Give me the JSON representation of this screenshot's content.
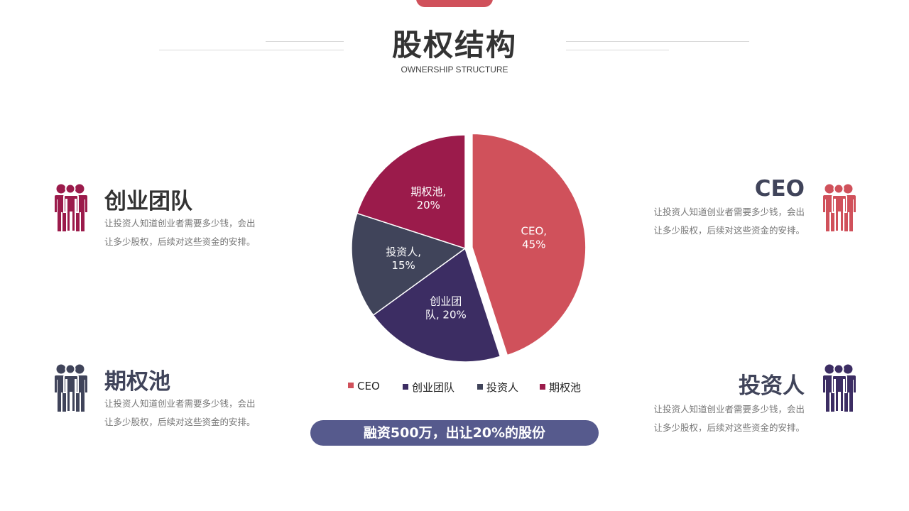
{
  "header": {
    "title": "股权结构",
    "subtitle": "OWNERSHIP STRUCTURE"
  },
  "colors": {
    "ceo": "#d0515b",
    "team": "#3c2d63",
    "investor": "#40445a",
    "pool": "#9b1b4b",
    "pill": "#565a8d"
  },
  "cards": [
    {
      "key": "team",
      "title": "创业团队",
      "desc": "让投资人知道创业者需要多少钱，会出让多少股权，后续对这些资金的安排。",
      "title_color": "#333333",
      "icon_color": "#9b1b4b"
    },
    {
      "key": "pool",
      "title": "期权池",
      "desc": "让投资人知道创业者需要多少钱，会出让多少股权，后续对这些资金的安排。",
      "title_color": "#40445a",
      "icon_color": "#40445a"
    },
    {
      "key": "ceo",
      "title": "CEO",
      "desc": "让投资人知道创业者需要多少钱，会出让多少股权，后续对这些资金的安排。",
      "title_color": "#40445a",
      "icon_color": "#d0515b"
    },
    {
      "key": "investor",
      "title": "投资人",
      "desc": "让投资人知道创业者需要多少钱，会出让多少股权，后续对这些资金的安排。",
      "title_color": "#40445a",
      "icon_color": "#3c2d63"
    }
  ],
  "chart_data": {
    "type": "pie",
    "title": "",
    "slices": [
      {
        "label": "CEO",
        "value": 45,
        "color": "#d0515b",
        "data_label": [
          "CEO,",
          "45%"
        ],
        "exploded": true
      },
      {
        "label": "创业团队",
        "value": 20,
        "color": "#3c2d63",
        "data_label": [
          "创业团",
          "队, 20%"
        ],
        "exploded": false
      },
      {
        "label": "投资人",
        "value": 15,
        "color": "#40445a",
        "data_label": [
          "投资人,",
          "15%"
        ],
        "exploded": false
      },
      {
        "label": "期权池",
        "value": 20,
        "color": "#9b1b4b",
        "data_label": [
          "期权池,",
          "20%"
        ],
        "exploded": false
      }
    ],
    "legend_position": "bottom"
  },
  "footer": {
    "pill_text": "融资500万，出让20%的股份"
  }
}
